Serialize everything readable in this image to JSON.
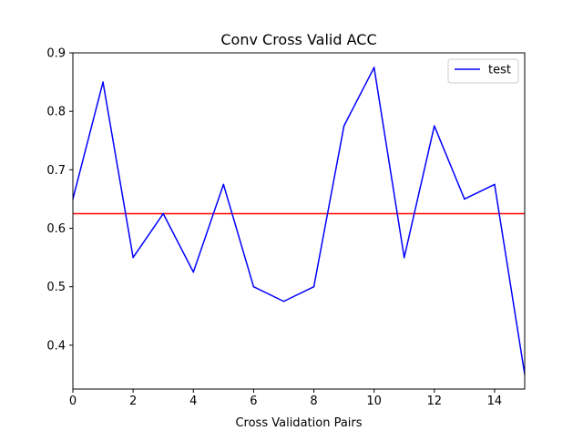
{
  "chart_data": {
    "type": "line",
    "title": "Conv Cross Valid ACC",
    "xlabel": "Cross Validation Pairs",
    "ylabel": "",
    "xlim": [
      0,
      15
    ],
    "ylim": [
      0.325,
      0.9
    ],
    "xticks": [
      0,
      2,
      4,
      6,
      8,
      10,
      12,
      14
    ],
    "yticks": [
      0.4,
      0.5,
      0.6,
      0.7,
      0.8,
      0.9
    ],
    "grid": false,
    "legend_position": "top-right",
    "series": [
      {
        "name": "test",
        "color": "#0000ff",
        "x": [
          0,
          1,
          2,
          3,
          4,
          5,
          6,
          7,
          8,
          9,
          10,
          11,
          12,
          13,
          14,
          15
        ],
        "values": [
          0.65,
          0.85,
          0.55,
          0.625,
          0.525,
          0.675,
          0.5,
          0.475,
          0.5,
          0.775,
          0.875,
          0.55,
          0.775,
          0.65,
          0.675,
          0.35
        ]
      }
    ],
    "hlines": [
      {
        "y": 0.625,
        "color": "#ff0000"
      }
    ]
  }
}
